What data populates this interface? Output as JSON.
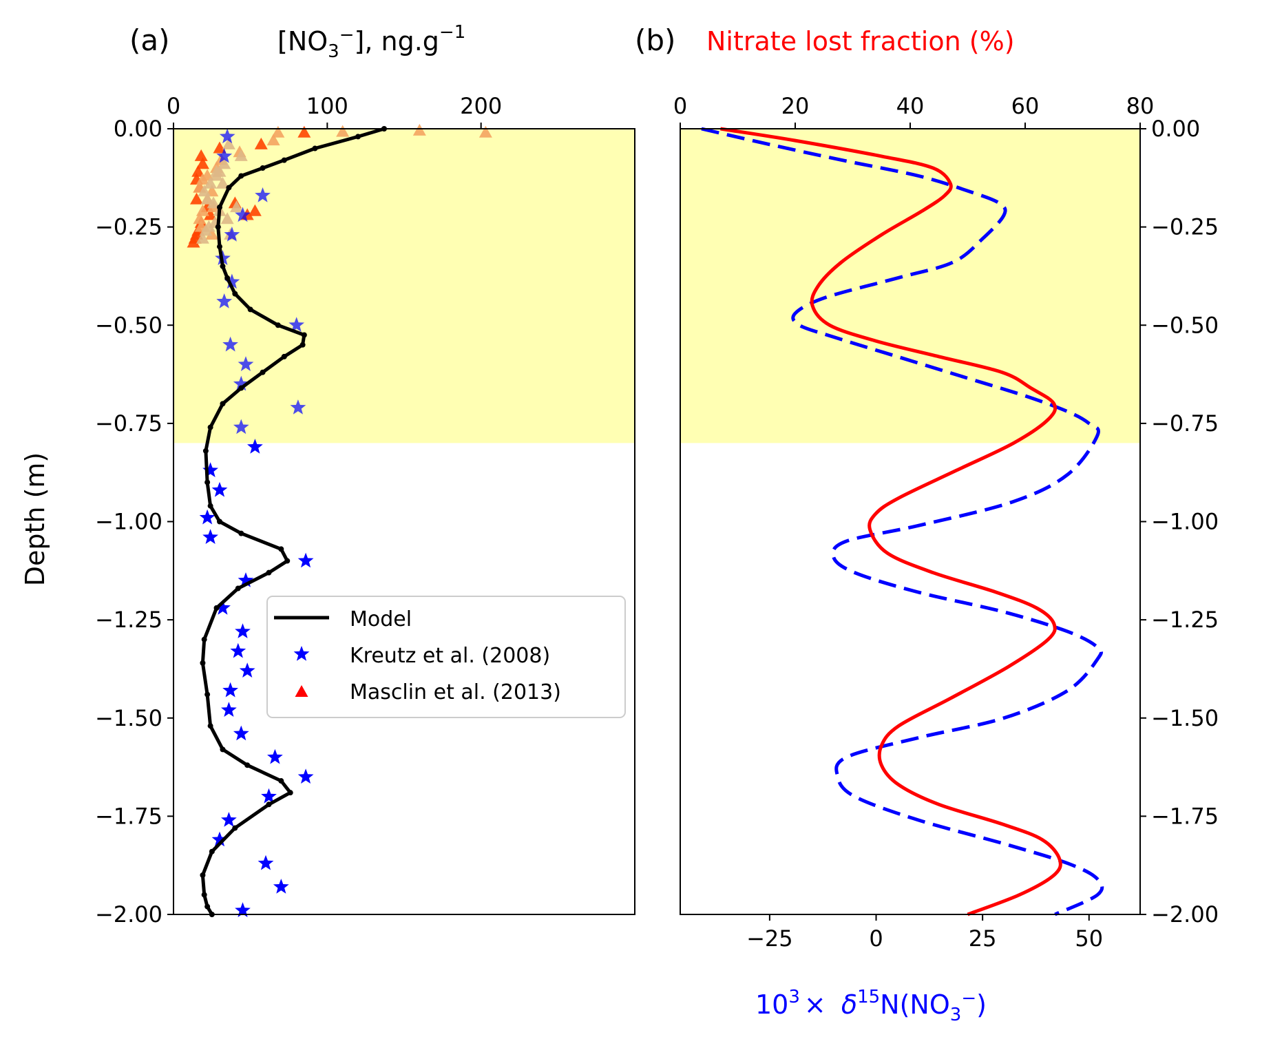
{
  "colors": {
    "shade": "#ffffb3",
    "model": "#000000",
    "kreutz": "#0000ff",
    "masclin": "#ff0000",
    "lost": "#ff0000",
    "delta": "#0000ff",
    "masclin_points": [
      "#ff4500",
      "#ff7f0e",
      "#f4a460",
      "#deb887"
    ]
  },
  "chart_data": [
    {
      "type": "line",
      "panel_label": "(a)",
      "title": "[NO₃⁻], ng.g⁻¹",
      "xlabel_parts": {
        "base": "[NO",
        "sub": "3",
        "sup1": "−",
        "mid": "], ng.g",
        "sup2": "−1"
      },
      "ylabel": "Depth (m)",
      "xlim": [
        0,
        300
      ],
      "ylim": [
        -2.0,
        0.0
      ],
      "xticks": [
        "0",
        "100",
        "200"
      ],
      "xtick_values": [
        0,
        100,
        200
      ],
      "yticks": [
        "0.00",
        "−0.25",
        "−0.50",
        "−0.75",
        "−1.00",
        "−1.25",
        "−1.50",
        "−1.75",
        "−2.00"
      ],
      "ytick_values": [
        0,
        -0.25,
        -0.5,
        -0.75,
        -1.0,
        -1.25,
        -1.5,
        -1.75,
        -2.0
      ],
      "shaded_depth": [
        -0.8,
        0.0
      ],
      "legend": [
        "Model",
        "Kreutz et al. (2008)",
        "Masclin et al. (2013)"
      ],
      "legend_position": "center-right",
      "model": {
        "name": "Model",
        "x": [
          137,
          120,
          92,
          72,
          58,
          44,
          36,
          30,
          29,
          30,
          32,
          35,
          40,
          50,
          68,
          85,
          84,
          72,
          58,
          44,
          32,
          24,
          21,
          22,
          24,
          30,
          44,
          70,
          74,
          62,
          42,
          28,
          20,
          19,
          22,
          24,
          32,
          48,
          70,
          76,
          62,
          40,
          25,
          19,
          20,
          22,
          25
        ],
        "y": [
          0.0,
          -0.02,
          -0.05,
          -0.08,
          -0.1,
          -0.12,
          -0.15,
          -0.2,
          -0.25,
          -0.3,
          -0.35,
          -0.38,
          -0.42,
          -0.46,
          -0.5,
          -0.525,
          -0.55,
          -0.58,
          -0.62,
          -0.66,
          -0.7,
          -0.76,
          -0.82,
          -0.9,
          -0.96,
          -1.0,
          -1.03,
          -1.07,
          -1.1,
          -1.13,
          -1.17,
          -1.22,
          -1.3,
          -1.36,
          -1.44,
          -1.52,
          -1.58,
          -1.62,
          -1.66,
          -1.69,
          -1.72,
          -1.78,
          -1.84,
          -1.9,
          -1.95,
          -1.98,
          -2.0
        ]
      },
      "kreutz": {
        "name": "Kreutz et al. (2008)",
        "x": [
          35,
          33,
          58,
          45,
          38,
          32,
          38,
          33,
          80,
          37,
          47,
          44,
          81,
          44,
          53,
          24,
          30,
          22,
          24,
          86,
          47,
          32,
          45,
          42,
          48,
          37,
          36,
          44,
          66,
          86,
          62,
          36,
          30,
          60,
          70,
          45
        ],
        "y": [
          -0.02,
          -0.07,
          -0.17,
          -0.22,
          -0.27,
          -0.33,
          -0.39,
          -0.44,
          -0.5,
          -0.55,
          -0.6,
          -0.65,
          -0.71,
          -0.76,
          -0.81,
          -0.87,
          -0.92,
          -0.99,
          -1.04,
          -1.1,
          -1.15,
          -1.22,
          -1.28,
          -1.33,
          -1.38,
          -1.43,
          -1.48,
          -1.54,
          -1.6,
          -1.65,
          -1.7,
          -1.76,
          -1.81,
          -1.87,
          -1.93,
          -1.99
        ]
      },
      "masclin": {
        "name": "Masclin et al. (2013)",
        "x": [
          85,
          57,
          30,
          18,
          19,
          16,
          15,
          17,
          15,
          22,
          24,
          18,
          16,
          14,
          48,
          53,
          40,
          15,
          13,
          203,
          160,
          110,
          68,
          65,
          43,
          31,
          28,
          22,
          19,
          17,
          25,
          22,
          26,
          19,
          17,
          18,
          25,
          36,
          44,
          33,
          30,
          28,
          24,
          20,
          22,
          26,
          30,
          35,
          27,
          23,
          21,
          19,
          28,
          32,
          41,
          37
        ],
        "y": [
          -0.01,
          -0.04,
          -0.05,
          -0.07,
          -0.09,
          -0.11,
          -0.13,
          -0.15,
          -0.18,
          -0.2,
          -0.22,
          -0.24,
          -0.26,
          -0.28,
          -0.22,
          -0.21,
          -0.19,
          -0.27,
          -0.29,
          -0.01,
          -0.005,
          -0.008,
          -0.01,
          -0.03,
          -0.06,
          -0.08,
          -0.1,
          -0.12,
          -0.13,
          -0.15,
          -0.16,
          -0.18,
          -0.2,
          -0.21,
          -0.23,
          -0.25,
          -0.27,
          -0.04,
          -0.07,
          -0.09,
          -0.11,
          -0.12,
          -0.14,
          -0.16,
          -0.18,
          -0.19,
          -0.21,
          -0.23,
          -0.24,
          -0.25,
          -0.26,
          -0.28,
          -0.11,
          -0.14,
          -0.2,
          -0.27
        ]
      }
    },
    {
      "type": "line",
      "panel_label": "(b)",
      "title": "Nitrate lost fraction (%)",
      "xlabel_parts": {
        "pre": "10",
        "sup1": "3",
        "times": "× ",
        "delta": "δ",
        "sup2": "15",
        "mid": "N(NO",
        "sub": "3",
        "sup3": "−",
        "end": ")"
      },
      "top_xlim": [
        0,
        80
      ],
      "top_xticks": [
        "0",
        "20",
        "40",
        "60",
        "80"
      ],
      "top_xtick_values": [
        0,
        20,
        40,
        60,
        80
      ],
      "bottom_xlim": [
        -46,
        62
      ],
      "bottom_xticks": [
        "−25",
        "0",
        "25",
        "50"
      ],
      "bottom_xtick_values": [
        -25,
        0,
        25,
        50
      ],
      "ylim": [
        -2.0,
        0.0
      ],
      "yticks": [
        "0.00",
        "−0.25",
        "−0.50",
        "−0.75",
        "−1.00",
        "−1.25",
        "−1.50",
        "−1.75",
        "−2.00"
      ],
      "ytick_values": [
        0,
        -0.25,
        -0.5,
        -0.75,
        -1.0,
        -1.25,
        -1.5,
        -1.75,
        -2.0
      ],
      "shaded_depth": [
        -0.8,
        0.0
      ],
      "lost_fraction": {
        "name": "Nitrate lost fraction (%)",
        "x": [
          7,
          20,
          35,
          44,
          47,
          46,
          42,
          35,
          28,
          24,
          23,
          26,
          34,
          45,
          56,
          61,
          65,
          64,
          58,
          48,
          38,
          34,
          33,
          36,
          44,
          55,
          62,
          65,
          64,
          57,
          47,
          38,
          35,
          35,
          38,
          45,
          56,
          63,
          66,
          65,
          59,
          50
        ],
        "y": [
          0.0,
          -0.03,
          -0.07,
          -0.1,
          -0.14,
          -0.17,
          -0.21,
          -0.27,
          -0.34,
          -0.4,
          -0.45,
          -0.5,
          -0.54,
          -0.58,
          -0.62,
          -0.66,
          -0.7,
          -0.74,
          -0.8,
          -0.87,
          -0.94,
          -0.98,
          -1.02,
          -1.08,
          -1.13,
          -1.18,
          -1.22,
          -1.26,
          -1.3,
          -1.37,
          -1.45,
          -1.52,
          -1.57,
          -1.62,
          -1.67,
          -1.72,
          -1.77,
          -1.81,
          -1.86,
          -1.9,
          -1.95,
          -2.0
        ]
      },
      "delta15n": {
        "name": "10³ × δ¹⁵N(NO₃⁻)",
        "x": [
          -41,
          -25,
          -8,
          10,
          22,
          29,
          30,
          25,
          18,
          5,
          -12,
          -19,
          -18,
          -10,
          5,
          20,
          35,
          45,
          50,
          52,
          45,
          32,
          10,
          -7,
          -10,
          -5,
          10,
          30,
          45,
          52,
          52,
          45,
          30,
          10,
          -7,
          -9,
          -5,
          10,
          30,
          45,
          52,
          52,
          42
        ],
        "y": [
          0.0,
          -0.04,
          -0.08,
          -0.12,
          -0.16,
          -0.19,
          -0.22,
          -0.28,
          -0.34,
          -0.38,
          -0.43,
          -0.47,
          -0.5,
          -0.53,
          -0.58,
          -0.63,
          -0.68,
          -0.72,
          -0.75,
          -0.78,
          -0.88,
          -0.95,
          -1.01,
          -1.05,
          -1.09,
          -1.13,
          -1.18,
          -1.23,
          -1.28,
          -1.32,
          -1.35,
          -1.43,
          -1.5,
          -1.55,
          -1.6,
          -1.65,
          -1.7,
          -1.76,
          -1.82,
          -1.87,
          -1.91,
          -1.95,
          -2.0
        ]
      }
    }
  ]
}
